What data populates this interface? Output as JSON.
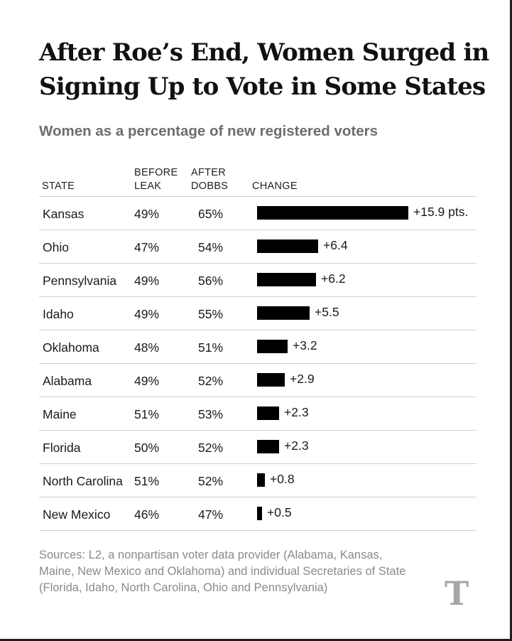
{
  "title": "After Roe’s End, Women Surged in Signing Up to Vote in Some States",
  "subtitle": "Women as a percentage of new registered voters",
  "headers": {
    "state": "STATE",
    "before_l1": "BEFORE",
    "before_l2": "LEAK",
    "after_l1": "AFTER",
    "after_l2": "DOBBS",
    "change": "CHANGE"
  },
  "chart_data": {
    "type": "bar",
    "title": "After Roe’s End, Women Surged in Signing Up to Vote in Some States",
    "subtitle": "Women as a percentage of new registered voters",
    "categories": [
      "Kansas",
      "Ohio",
      "Pennsylvania",
      "Idaho",
      "Oklahoma",
      "Alabama",
      "Maine",
      "Florida",
      "North Carolina",
      "New Mexico"
    ],
    "before": [
      "49%",
      "47%",
      "49%",
      "49%",
      "48%",
      "49%",
      "51%",
      "50%",
      "51%",
      "46%"
    ],
    "after": [
      "65%",
      "54%",
      "56%",
      "55%",
      "51%",
      "52%",
      "53%",
      "52%",
      "52%",
      "47%"
    ],
    "values": [
      15.9,
      6.4,
      6.2,
      5.5,
      3.2,
      2.9,
      2.3,
      2.3,
      0.8,
      0.5
    ],
    "labels": [
      "+15.9 pts.",
      "+6.4",
      "+6.2",
      "+5.5",
      "+3.2",
      "+2.9",
      "+2.3",
      "+2.3",
      "+0.8",
      "+0.5"
    ],
    "xlabel": "CHANGE",
    "ylabel": "STATE"
  },
  "source": "Sources: L2, a nonpartisan voter data provider (Alabama, Kansas, Maine, New Mexico and Oklahoma) and individual Secretaries of State (Florida, Idaho, North Carolina, Ohio and Pennsylvania)",
  "logo_text": "T",
  "colors": {
    "bar": "#000000",
    "subtitle": "#6d6d6d",
    "source": "#8a8a8a",
    "logo": "#a6a6a6"
  }
}
